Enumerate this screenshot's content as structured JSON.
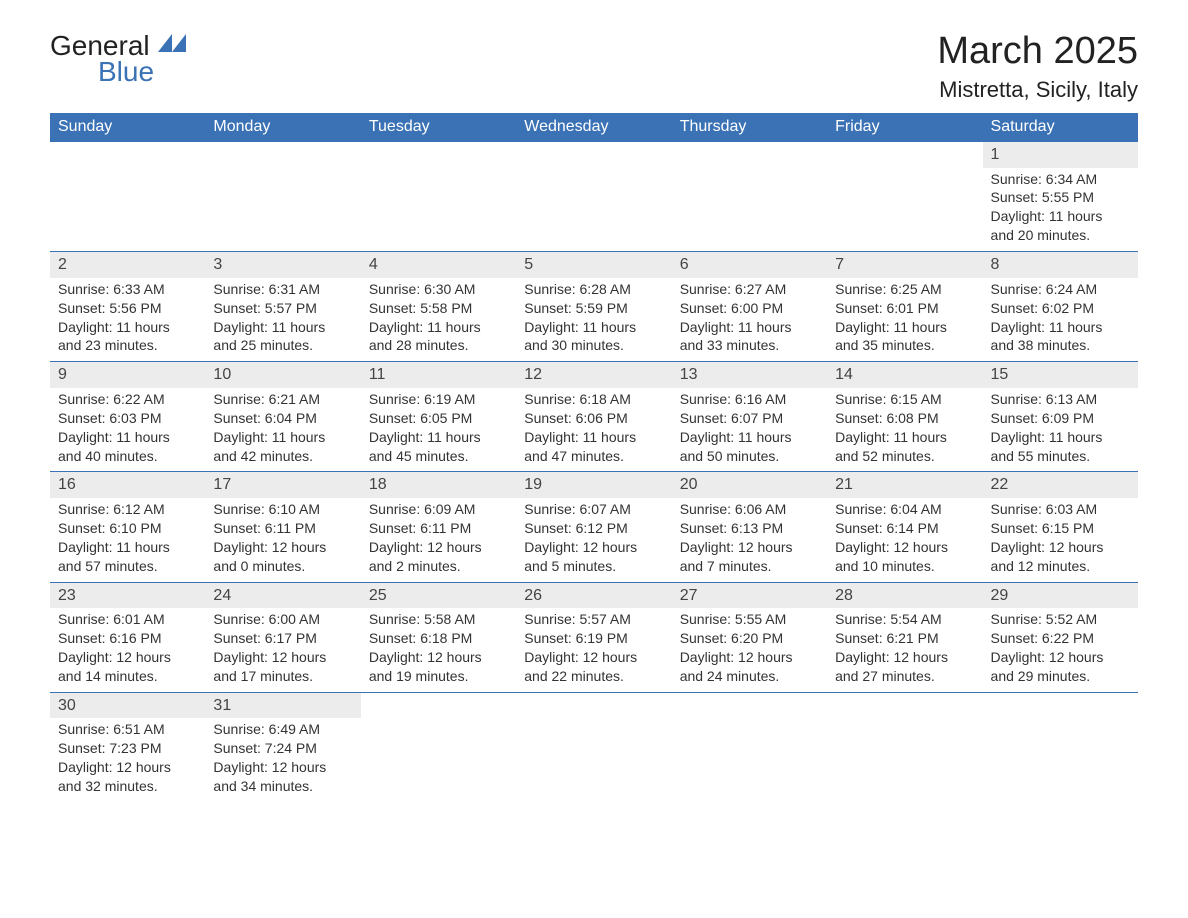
{
  "brand": {
    "name1": "General",
    "name2": "Blue",
    "accent": "#3a72b5"
  },
  "title": "March 2025",
  "location": "Mistretta, Sicily, Italy",
  "weekdays": [
    "Sunday",
    "Monday",
    "Tuesday",
    "Wednesday",
    "Thursday",
    "Friday",
    "Saturday"
  ],
  "colors": {
    "header_bg": "#3a72b5",
    "header_text": "#ffffff",
    "daynum_bg": "#ececec",
    "row_border": "#3a72b5",
    "body_text": "#333333",
    "background": "#ffffff"
  },
  "typography": {
    "title_fontsize": 38,
    "location_fontsize": 22,
    "weekday_fontsize": 16,
    "cell_fontsize": 14
  },
  "layout": {
    "columns": 7,
    "rows": 6,
    "type": "calendar-table"
  },
  "weeks": [
    [
      null,
      null,
      null,
      null,
      null,
      null,
      {
        "day": "1",
        "sunrise": "Sunrise: 6:34 AM",
        "sunset": "Sunset: 5:55 PM",
        "daylight1": "Daylight: 11 hours",
        "daylight2": "and 20 minutes."
      }
    ],
    [
      {
        "day": "2",
        "sunrise": "Sunrise: 6:33 AM",
        "sunset": "Sunset: 5:56 PM",
        "daylight1": "Daylight: 11 hours",
        "daylight2": "and 23 minutes."
      },
      {
        "day": "3",
        "sunrise": "Sunrise: 6:31 AM",
        "sunset": "Sunset: 5:57 PM",
        "daylight1": "Daylight: 11 hours",
        "daylight2": "and 25 minutes."
      },
      {
        "day": "4",
        "sunrise": "Sunrise: 6:30 AM",
        "sunset": "Sunset: 5:58 PM",
        "daylight1": "Daylight: 11 hours",
        "daylight2": "and 28 minutes."
      },
      {
        "day": "5",
        "sunrise": "Sunrise: 6:28 AM",
        "sunset": "Sunset: 5:59 PM",
        "daylight1": "Daylight: 11 hours",
        "daylight2": "and 30 minutes."
      },
      {
        "day": "6",
        "sunrise": "Sunrise: 6:27 AM",
        "sunset": "Sunset: 6:00 PM",
        "daylight1": "Daylight: 11 hours",
        "daylight2": "and 33 minutes."
      },
      {
        "day": "7",
        "sunrise": "Sunrise: 6:25 AM",
        "sunset": "Sunset: 6:01 PM",
        "daylight1": "Daylight: 11 hours",
        "daylight2": "and 35 minutes."
      },
      {
        "day": "8",
        "sunrise": "Sunrise: 6:24 AM",
        "sunset": "Sunset: 6:02 PM",
        "daylight1": "Daylight: 11 hours",
        "daylight2": "and 38 minutes."
      }
    ],
    [
      {
        "day": "9",
        "sunrise": "Sunrise: 6:22 AM",
        "sunset": "Sunset: 6:03 PM",
        "daylight1": "Daylight: 11 hours",
        "daylight2": "and 40 minutes."
      },
      {
        "day": "10",
        "sunrise": "Sunrise: 6:21 AM",
        "sunset": "Sunset: 6:04 PM",
        "daylight1": "Daylight: 11 hours",
        "daylight2": "and 42 minutes."
      },
      {
        "day": "11",
        "sunrise": "Sunrise: 6:19 AM",
        "sunset": "Sunset: 6:05 PM",
        "daylight1": "Daylight: 11 hours",
        "daylight2": "and 45 minutes."
      },
      {
        "day": "12",
        "sunrise": "Sunrise: 6:18 AM",
        "sunset": "Sunset: 6:06 PM",
        "daylight1": "Daylight: 11 hours",
        "daylight2": "and 47 minutes."
      },
      {
        "day": "13",
        "sunrise": "Sunrise: 6:16 AM",
        "sunset": "Sunset: 6:07 PM",
        "daylight1": "Daylight: 11 hours",
        "daylight2": "and 50 minutes."
      },
      {
        "day": "14",
        "sunrise": "Sunrise: 6:15 AM",
        "sunset": "Sunset: 6:08 PM",
        "daylight1": "Daylight: 11 hours",
        "daylight2": "and 52 minutes."
      },
      {
        "day": "15",
        "sunrise": "Sunrise: 6:13 AM",
        "sunset": "Sunset: 6:09 PM",
        "daylight1": "Daylight: 11 hours",
        "daylight2": "and 55 minutes."
      }
    ],
    [
      {
        "day": "16",
        "sunrise": "Sunrise: 6:12 AM",
        "sunset": "Sunset: 6:10 PM",
        "daylight1": "Daylight: 11 hours",
        "daylight2": "and 57 minutes."
      },
      {
        "day": "17",
        "sunrise": "Sunrise: 6:10 AM",
        "sunset": "Sunset: 6:11 PM",
        "daylight1": "Daylight: 12 hours",
        "daylight2": "and 0 minutes."
      },
      {
        "day": "18",
        "sunrise": "Sunrise: 6:09 AM",
        "sunset": "Sunset: 6:11 PM",
        "daylight1": "Daylight: 12 hours",
        "daylight2": "and 2 minutes."
      },
      {
        "day": "19",
        "sunrise": "Sunrise: 6:07 AM",
        "sunset": "Sunset: 6:12 PM",
        "daylight1": "Daylight: 12 hours",
        "daylight2": "and 5 minutes."
      },
      {
        "day": "20",
        "sunrise": "Sunrise: 6:06 AM",
        "sunset": "Sunset: 6:13 PM",
        "daylight1": "Daylight: 12 hours",
        "daylight2": "and 7 minutes."
      },
      {
        "day": "21",
        "sunrise": "Sunrise: 6:04 AM",
        "sunset": "Sunset: 6:14 PM",
        "daylight1": "Daylight: 12 hours",
        "daylight2": "and 10 minutes."
      },
      {
        "day": "22",
        "sunrise": "Sunrise: 6:03 AM",
        "sunset": "Sunset: 6:15 PM",
        "daylight1": "Daylight: 12 hours",
        "daylight2": "and 12 minutes."
      }
    ],
    [
      {
        "day": "23",
        "sunrise": "Sunrise: 6:01 AM",
        "sunset": "Sunset: 6:16 PM",
        "daylight1": "Daylight: 12 hours",
        "daylight2": "and 14 minutes."
      },
      {
        "day": "24",
        "sunrise": "Sunrise: 6:00 AM",
        "sunset": "Sunset: 6:17 PM",
        "daylight1": "Daylight: 12 hours",
        "daylight2": "and 17 minutes."
      },
      {
        "day": "25",
        "sunrise": "Sunrise: 5:58 AM",
        "sunset": "Sunset: 6:18 PM",
        "daylight1": "Daylight: 12 hours",
        "daylight2": "and 19 minutes."
      },
      {
        "day": "26",
        "sunrise": "Sunrise: 5:57 AM",
        "sunset": "Sunset: 6:19 PM",
        "daylight1": "Daylight: 12 hours",
        "daylight2": "and 22 minutes."
      },
      {
        "day": "27",
        "sunrise": "Sunrise: 5:55 AM",
        "sunset": "Sunset: 6:20 PM",
        "daylight1": "Daylight: 12 hours",
        "daylight2": "and 24 minutes."
      },
      {
        "day": "28",
        "sunrise": "Sunrise: 5:54 AM",
        "sunset": "Sunset: 6:21 PM",
        "daylight1": "Daylight: 12 hours",
        "daylight2": "and 27 minutes."
      },
      {
        "day": "29",
        "sunrise": "Sunrise: 5:52 AM",
        "sunset": "Sunset: 6:22 PM",
        "daylight1": "Daylight: 12 hours",
        "daylight2": "and 29 minutes."
      }
    ],
    [
      {
        "day": "30",
        "sunrise": "Sunrise: 6:51 AM",
        "sunset": "Sunset: 7:23 PM",
        "daylight1": "Daylight: 12 hours",
        "daylight2": "and 32 minutes."
      },
      {
        "day": "31",
        "sunrise": "Sunrise: 6:49 AM",
        "sunset": "Sunset: 7:24 PM",
        "daylight1": "Daylight: 12 hours",
        "daylight2": "and 34 minutes."
      },
      null,
      null,
      null,
      null,
      null
    ]
  ]
}
